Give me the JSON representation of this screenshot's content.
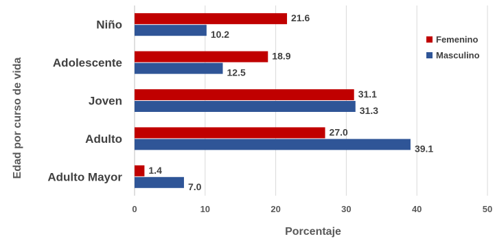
{
  "chart_data": {
    "type": "bar",
    "orientation": "horizontal",
    "categories": [
      "Niño",
      "Adolescente",
      "Joven",
      "Adulto",
      "Adulto Mayor"
    ],
    "series": [
      {
        "name": "Femenino",
        "color": "#C00000",
        "values": [
          21.6,
          18.9,
          31.1,
          27.0,
          1.4
        ],
        "labels": [
          "21.6",
          "18.9",
          "31.1",
          "27.0",
          "1.4"
        ]
      },
      {
        "name": "Masculino",
        "color": "#2F5597",
        "values": [
          10.2,
          12.5,
          31.3,
          39.1,
          7.0
        ],
        "labels": [
          "10.2",
          "12.5",
          "31.3",
          "39.1",
          "7.0"
        ]
      }
    ],
    "xlabel": "Porcentaje",
    "ylabel": "Edad por curso de vida",
    "xlim": [
      0,
      50
    ],
    "xticks": [
      "0",
      "10",
      "20",
      "30",
      "40",
      "50"
    ],
    "grid": true,
    "legend_position": "right"
  }
}
